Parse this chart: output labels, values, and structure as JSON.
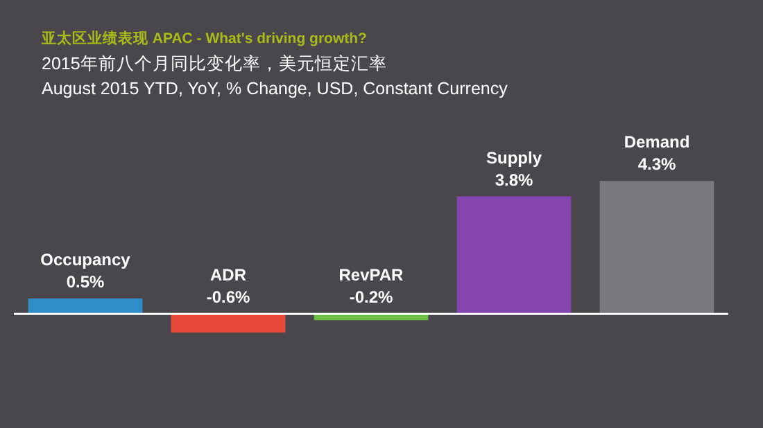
{
  "chart_data": {
    "type": "bar",
    "title": "亚太区业绩表现 APAC - What's driving growth?",
    "subtitle": "2015年前八个月同比变化率，美元恒定汇率\nAugust 2015 YTD, YoY, % Change, USD, Constant Currency",
    "categories": [
      "Occupancy",
      "ADR",
      "RevPAR",
      "Supply",
      "Demand"
    ],
    "values": [
      0.5,
      -0.6,
      -0.2,
      3.8,
      4.3
    ],
    "colors": [
      "#2e8fc8",
      "#e8493a",
      "#6cbf45",
      "#8646b0",
      "#7a787d"
    ],
    "value_labels": [
      "0.5%",
      "-0.6%",
      "-0.2%",
      "3.8%",
      "4.3%"
    ],
    "relative": false
  }
}
